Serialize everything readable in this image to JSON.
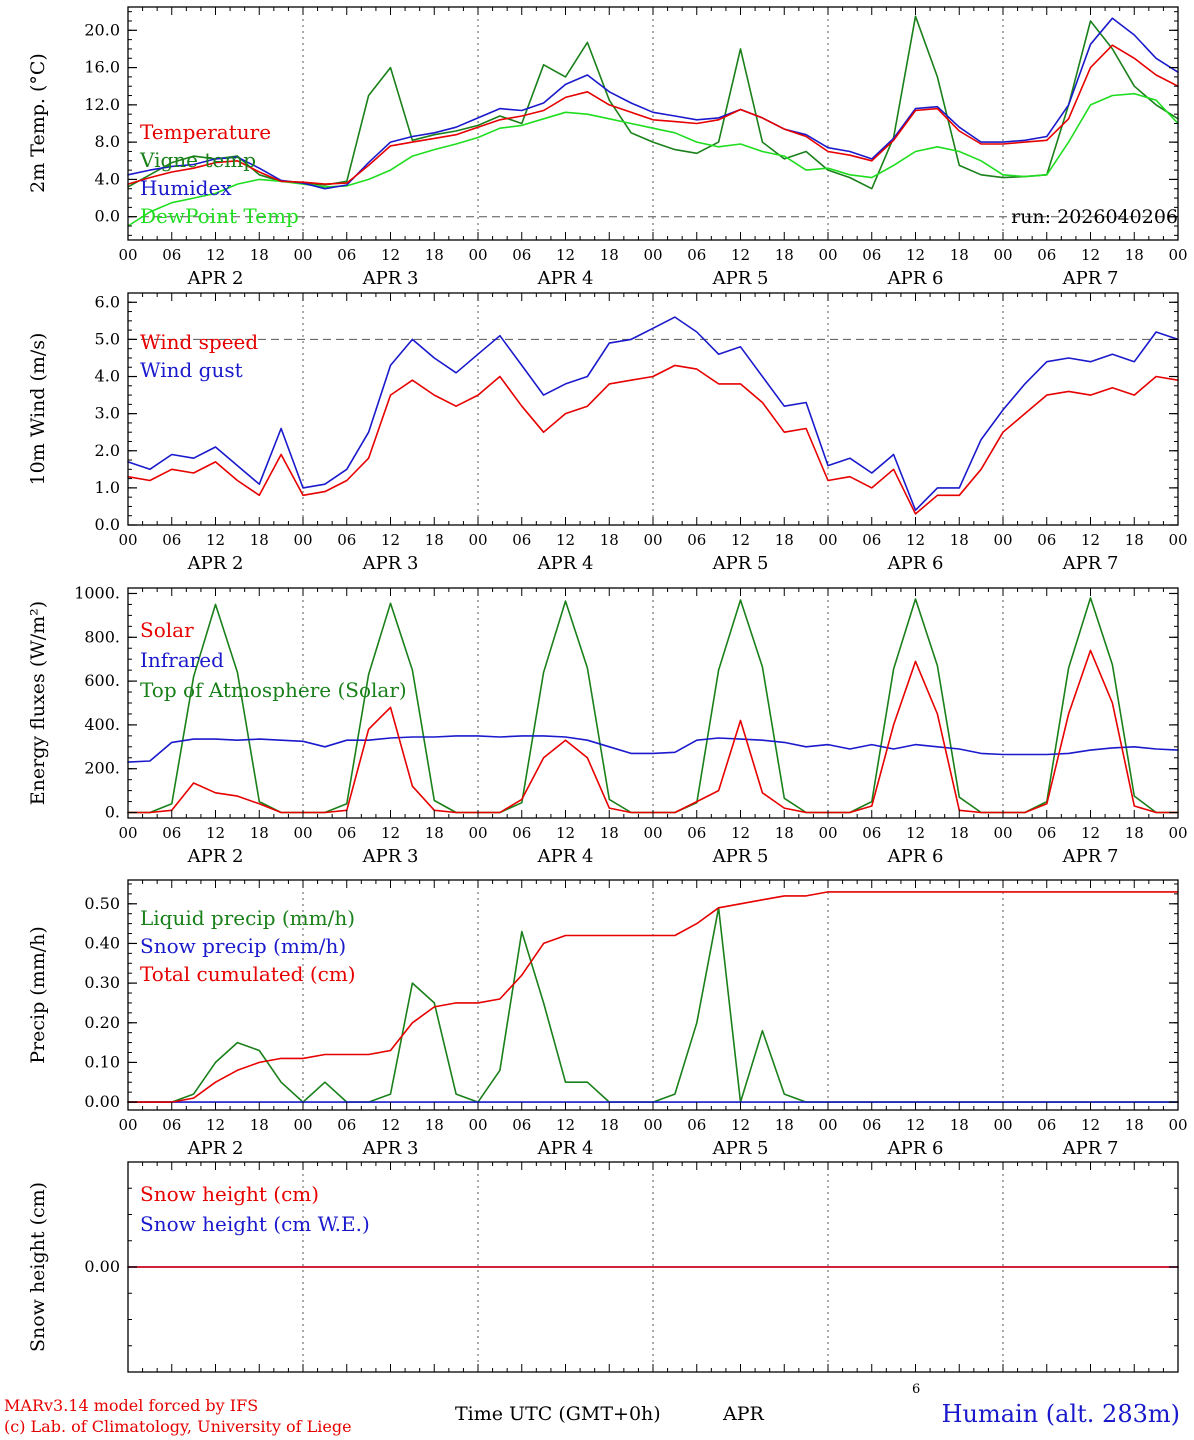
{
  "meta": {
    "run_label": "run: 2026040206",
    "footer": {
      "credit_line1": "MARv3.14 model forced by IFS",
      "credit_line2": "(c) Lab. of Climatology, University of Liege",
      "time_axis_label": "Time UTC (GMT+0h)",
      "month_label": "APR",
      "page_number": "6",
      "station": "Humain (alt. 283m)"
    }
  },
  "colors": {
    "red": "#e60000",
    "blue": "#1a1acc",
    "dark_green": "#1a801a",
    "light_green": "#1fdd1f",
    "black": "#000000"
  },
  "x_axis": {
    "hours_start": 0,
    "hours_end": 144,
    "step_hours": 3,
    "tick_every_hours": 6,
    "hour_labels": [
      "00",
      "06",
      "12",
      "18"
    ],
    "day_labels": [
      "APR  2",
      "APR  3",
      "APR  4",
      "APR  5",
      "APR  6",
      "APR  7"
    ]
  },
  "chart_data": [
    {
      "type": "line",
      "name": "2m-temperature",
      "ylabel": "2m Temp. (°C)",
      "ylim": [
        -2.5,
        22.5
      ],
      "yticks": [
        0,
        4,
        8,
        12,
        16,
        20
      ],
      "ytick_labels": [
        "0.0",
        "4.0",
        "8.0",
        "12.0",
        "16.0",
        "20.0"
      ],
      "minor_ytick_step": 1,
      "dashed_ref_y": 0.0,
      "show_x_labels": true,
      "legend": [
        {
          "label": "Temperature",
          "color": "#e60000"
        },
        {
          "label": "Vigne temp",
          "color": "#1a801a"
        },
        {
          "label": "Humidex",
          "color": "#1a1acc"
        },
        {
          "label": "DewPoint Temp",
          "color": "#1fdd1f"
        }
      ],
      "series": [
        {
          "name": "Vigne temp",
          "color": "#1a801a",
          "values": [
            3.2,
            4.5,
            5.8,
            6.5,
            6.2,
            6.5,
            4.5,
            3.8,
            3.6,
            3.4,
            3.8,
            13.0,
            16.0,
            8.2,
            8.8,
            9.2,
            9.8,
            10.8,
            10.0,
            16.3,
            15.0,
            18.7,
            12.5,
            9.0,
            8.0,
            7.2,
            6.8,
            8.0,
            18.0,
            8.0,
            6.2,
            7.0,
            5.0,
            4.2,
            3.0,
            8.5,
            21.5,
            15.0,
            5.5,
            4.5,
            4.2,
            4.3,
            4.5,
            12.0,
            21.0,
            18.0,
            14.0,
            12.0,
            10.5
          ]
        },
        {
          "name": "DewPoint Temp",
          "color": "#1fdd1f",
          "values": [
            -1.0,
            0.5,
            1.5,
            2.0,
            2.5,
            3.5,
            4.0,
            3.8,
            3.5,
            3.2,
            3.3,
            4.0,
            5.0,
            6.5,
            7.2,
            7.8,
            8.5,
            9.5,
            9.8,
            10.5,
            11.2,
            11.0,
            10.5,
            10.0,
            9.5,
            9.0,
            8.0,
            7.5,
            7.8,
            7.0,
            6.5,
            5.0,
            5.2,
            4.5,
            4.2,
            5.5,
            7.0,
            7.5,
            7.0,
            6.0,
            4.5,
            4.3,
            4.5,
            8.0,
            12.0,
            13.0,
            13.2,
            12.5,
            10.0
          ]
        },
        {
          "name": "Humidex",
          "color": "#1a1acc",
          "values": [
            4.5,
            5.0,
            5.4,
            5.6,
            6.2,
            6.4,
            5.2,
            3.9,
            3.6,
            3.0,
            3.4,
            5.8,
            8.0,
            8.6,
            9.0,
            9.6,
            10.6,
            11.6,
            11.4,
            12.2,
            14.2,
            15.2,
            13.4,
            12.2,
            11.2,
            10.8,
            10.4,
            10.6,
            11.5,
            10.6,
            9.4,
            8.8,
            7.4,
            7.0,
            6.2,
            8.4,
            11.6,
            11.8,
            9.6,
            8.0,
            8.0,
            8.2,
            8.6,
            12.0,
            18.5,
            21.3,
            19.5,
            17.0,
            15.5
          ]
        },
        {
          "name": "Temperature",
          "color": "#e60000",
          "values": [
            3.5,
            4.2,
            4.8,
            5.2,
            5.8,
            6.0,
            4.8,
            3.8,
            3.7,
            3.5,
            3.6,
            5.5,
            7.6,
            8.0,
            8.4,
            8.8,
            9.6,
            10.4,
            10.8,
            11.4,
            12.8,
            13.4,
            12.0,
            11.2,
            10.4,
            10.2,
            10.0,
            10.4,
            11.5,
            10.6,
            9.4,
            8.6,
            7.0,
            6.6,
            6.0,
            8.2,
            11.4,
            11.6,
            9.2,
            7.8,
            7.8,
            8.0,
            8.2,
            10.5,
            16.0,
            18.4,
            17.0,
            15.2,
            14.0
          ]
        }
      ]
    },
    {
      "type": "line",
      "name": "10m-wind",
      "ylabel": "10m Wind (m/s)",
      "ylim": [
        0,
        6.25
      ],
      "yticks": [
        0,
        1,
        2,
        3,
        4,
        5,
        6
      ],
      "ytick_labels": [
        "0.0",
        "1.0",
        "2.0",
        "3.0",
        "4.0",
        "5.0",
        "6.0"
      ],
      "minor_ytick_step": 0.25,
      "dashed_ref_y": 5.0,
      "show_x_labels": true,
      "legend": [
        {
          "label": "Wind speed",
          "color": "#e60000"
        },
        {
          "label": "Wind gust",
          "color": "#1a1acc"
        }
      ],
      "series": [
        {
          "name": "Wind gust",
          "color": "#1a1acc",
          "values": [
            1.7,
            1.5,
            1.9,
            1.8,
            2.1,
            1.6,
            1.1,
            2.6,
            1.0,
            1.1,
            1.5,
            2.5,
            4.3,
            5.0,
            4.5,
            4.1,
            4.6,
            5.1,
            4.3,
            3.5,
            3.8,
            4.0,
            4.9,
            5.0,
            5.3,
            5.6,
            5.2,
            4.6,
            4.8,
            4.0,
            3.2,
            3.3,
            1.6,
            1.8,
            1.4,
            1.9,
            0.4,
            1.0,
            1.0,
            2.3,
            3.1,
            3.8,
            4.4,
            4.5,
            4.4,
            4.6,
            4.4,
            5.2,
            5.0
          ]
        },
        {
          "name": "Wind speed",
          "color": "#e60000",
          "values": [
            1.3,
            1.2,
            1.5,
            1.4,
            1.7,
            1.2,
            0.8,
            1.9,
            0.8,
            0.9,
            1.2,
            1.8,
            3.5,
            3.9,
            3.5,
            3.2,
            3.5,
            4.0,
            3.2,
            2.5,
            3.0,
            3.2,
            3.8,
            3.9,
            4.0,
            4.3,
            4.2,
            3.8,
            3.8,
            3.3,
            2.5,
            2.6,
            1.2,
            1.3,
            1.0,
            1.5,
            0.3,
            0.8,
            0.8,
            1.5,
            2.5,
            3.0,
            3.5,
            3.6,
            3.5,
            3.7,
            3.5,
            4.0,
            3.9
          ]
        }
      ]
    },
    {
      "type": "line",
      "name": "energy-fluxes",
      "ylabel": "Energy fluxes (W/m²)",
      "ylim": [
        -25,
        1025
      ],
      "yticks": [
        0,
        200,
        400,
        600,
        800,
        1000
      ],
      "ytick_labels": [
        "0.",
        "200.",
        "400.",
        "600.",
        "800.",
        "1000."
      ],
      "minor_ytick_step": 50,
      "dashed_ref_y": null,
      "show_x_labels": true,
      "legend": [
        {
          "label": "Solar",
          "color": "#e60000"
        },
        {
          "label": "Infrared",
          "color": "#1a1acc"
        },
        {
          "label": "Top of Atmosphere (Solar)",
          "color": "#1a801a"
        }
      ],
      "series": [
        {
          "name": "Top of Atmosphere (Solar)",
          "color": "#1a801a",
          "values": [
            0,
            0,
            40,
            620,
            950,
            640,
            50,
            0,
            0,
            0,
            40,
            630,
            955,
            650,
            55,
            0,
            0,
            0,
            45,
            640,
            965,
            660,
            60,
            0,
            0,
            0,
            45,
            650,
            970,
            665,
            65,
            0,
            0,
            0,
            50,
            655,
            975,
            670,
            70,
            0,
            0,
            0,
            50,
            660,
            980,
            675,
            75,
            0,
            0
          ]
        },
        {
          "name": "Infrared",
          "color": "#1a1acc",
          "values": [
            230,
            235,
            320,
            335,
            335,
            330,
            335,
            330,
            325,
            300,
            330,
            330,
            340,
            345,
            345,
            350,
            350,
            345,
            350,
            350,
            345,
            330,
            300,
            270,
            270,
            275,
            330,
            340,
            335,
            330,
            320,
            300,
            310,
            290,
            310,
            290,
            310,
            300,
            290,
            270,
            265,
            265,
            265,
            270,
            285,
            295,
            300,
            290,
            285
          ]
        },
        {
          "name": "Solar",
          "color": "#e60000",
          "values": [
            0,
            0,
            10,
            135,
            90,
            75,
            40,
            0,
            0,
            0,
            10,
            380,
            480,
            120,
            10,
            0,
            0,
            0,
            60,
            250,
            330,
            250,
            20,
            0,
            0,
            0,
            50,
            100,
            420,
            90,
            20,
            0,
            0,
            0,
            30,
            400,
            690,
            450,
            10,
            0,
            0,
            0,
            40,
            450,
            740,
            500,
            30,
            0,
            0
          ]
        }
      ]
    },
    {
      "type": "line",
      "name": "precipitation",
      "ylabel": "Precip (mm/h)",
      "ylim": [
        -0.02,
        0.56
      ],
      "yticks": [
        0,
        0.1,
        0.2,
        0.3,
        0.4,
        0.5
      ],
      "ytick_labels": [
        "0.00",
        "0.10",
        "0.20",
        "0.30",
        "0.40",
        "0.50"
      ],
      "minor_ytick_step": 0.025,
      "dashed_ref_y": null,
      "show_x_labels": true,
      "legend": [
        {
          "label": "Liquid precip (mm/h)",
          "color": "#1a801a"
        },
        {
          "label": "Snow precip (mm/h)",
          "color": "#1a1acc"
        },
        {
          "label": "Total cumulated (cm)",
          "color": "#e60000"
        }
      ],
      "series": [
        {
          "name": "Liquid precip (mm/h)",
          "color": "#1a801a",
          "values": [
            0,
            0,
            0,
            0.02,
            0.1,
            0.15,
            0.13,
            0.05,
            0,
            0.05,
            0,
            0,
            0.02,
            0.3,
            0.25,
            0.02,
            0,
            0.08,
            0.43,
            0.25,
            0.05,
            0.05,
            0,
            0,
            0,
            0.02,
            0.2,
            0.49,
            0,
            0.18,
            0.02,
            0,
            0,
            0,
            0,
            0,
            0,
            0,
            0,
            0,
            0,
            0,
            0,
            0,
            0,
            0,
            0,
            0,
            0
          ]
        },
        {
          "name": "Snow precip (mm/h)",
          "color": "#1a1acc",
          "constant": 0.0
        },
        {
          "name": "Total cumulated (cm)",
          "color": "#e60000",
          "values": [
            0,
            0,
            0,
            0.01,
            0.05,
            0.08,
            0.1,
            0.11,
            0.11,
            0.12,
            0.12,
            0.12,
            0.13,
            0.2,
            0.24,
            0.25,
            0.25,
            0.26,
            0.32,
            0.4,
            0.42,
            0.42,
            0.42,
            0.42,
            0.42,
            0.42,
            0.45,
            0.49,
            0.5,
            0.51,
            0.52,
            0.52,
            0.53,
            0.53,
            0.53,
            0.53,
            0.53,
            0.53,
            0.53,
            0.53,
            0.53,
            0.53,
            0.53,
            0.53,
            0.53,
            0.53,
            0.53,
            0.53,
            0.53
          ]
        }
      ]
    },
    {
      "type": "line",
      "name": "snow-height",
      "ylabel": "Snow height (cm)",
      "ylim": [
        -1,
        1
      ],
      "yticks": [
        0
      ],
      "ytick_labels": [
        "0.00"
      ],
      "minor_ytick_step": 0.25,
      "dashed_ref_y": null,
      "show_x_labels": false,
      "legend": [
        {
          "label": "Snow height (cm)",
          "color": "#e60000"
        },
        {
          "label": "Snow height (cm W.E.)",
          "color": "#1a1acc"
        }
      ],
      "series": [
        {
          "name": "Snow height (cm W.E.)",
          "color": "#1a1acc",
          "constant": 0.0
        },
        {
          "name": "Snow height (cm)",
          "color": "#e60000",
          "constant": 0.0
        }
      ]
    }
  ]
}
